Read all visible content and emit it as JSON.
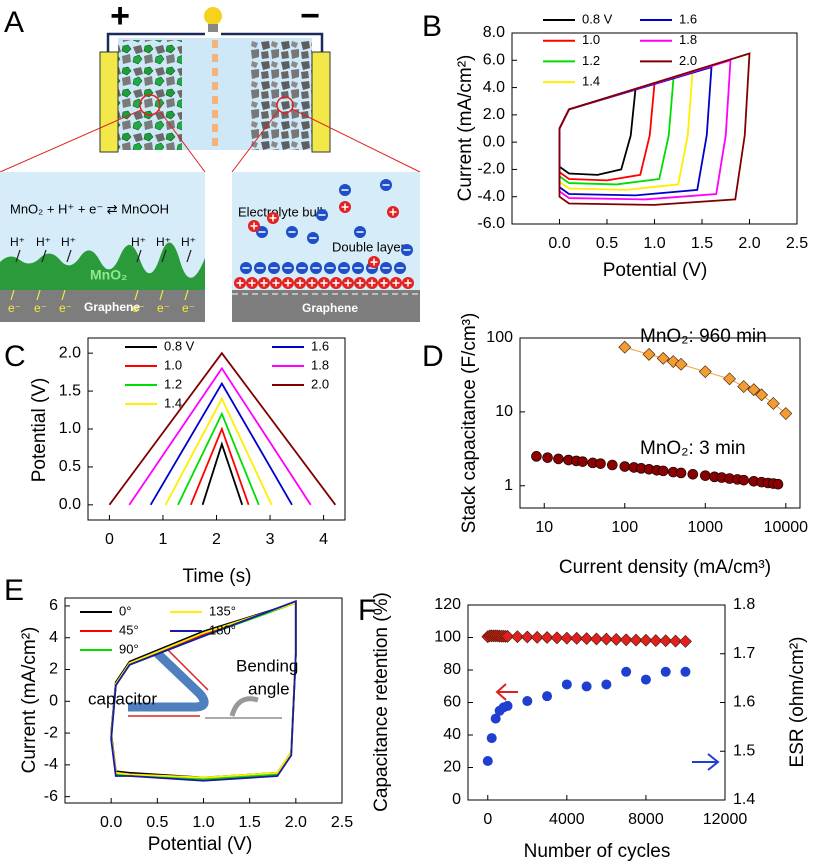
{
  "diagram": {
    "label": "A",
    "plus": "+",
    "minus": "−",
    "reaction": "MnO₂ + H⁺ + e⁻ ⇄ MnOOH",
    "protons": [
      "H⁺",
      "H⁺",
      "H⁺",
      "H⁺",
      "H⁺",
      "H⁺"
    ],
    "mno2": "MnO₂",
    "electrons": [
      "e⁻",
      "e⁻",
      "e⁻",
      "e⁻",
      "e⁻",
      "e⁻"
    ],
    "graphene_left": "Graphene",
    "electrolyte": "Electrolyte bulk",
    "double_layer": "Double layer",
    "graphene_right": "Graphene"
  },
  "chart_data": [
    {
      "type": "line",
      "panel_label": "B",
      "xlabel": "Potential (V)",
      "ylabel": "Current (mA/cm²)",
      "legend": "upper left",
      "xlim": [
        -0.5,
        2.5
      ],
      "ylim": [
        -6,
        8
      ],
      "xticks": [
        {
          "value": 0,
          "label": "0.0"
        },
        0.5,
        {
          "value": 1,
          "label": "1.0"
        },
        1.5,
        {
          "value": 2,
          "label": "2.0"
        },
        2.5
      ],
      "yticks": [
        {
          "value": 8,
          "label": "8.0"
        },
        {
          "value": 6,
          "label": "6.0"
        },
        {
          "value": 4,
          "label": "4.0"
        },
        {
          "value": 2,
          "label": "2.0"
        },
        {
          "value": 0,
          "label": "0.0"
        },
        {
          "value": -2,
          "label": "-2.0"
        },
        {
          "value": -4,
          "label": "-4.0"
        },
        {
          "value": -6,
          "label": "-6.0"
        }
      ],
      "series": [
        {
          "name": "0.8 V",
          "color": "#000000",
          "x": [
            0,
            0.1,
            0.8,
            0.75,
            0.65,
            0.4,
            0.1,
            0,
            0
          ],
          "values": [
            1,
            2.4,
            3.9,
            0.5,
            -2.0,
            -2.4,
            -2.3,
            -1.8,
            1
          ]
        },
        {
          "name": "1.0",
          "color": "#ff0000",
          "x": [
            0,
            0.1,
            1.0,
            0.95,
            0.85,
            0.5,
            0.1,
            0,
            0
          ],
          "values": [
            1,
            2.4,
            4.3,
            0.5,
            -2.4,
            -2.8,
            -2.7,
            -2.2,
            1
          ]
        },
        {
          "name": "1.2",
          "color": "#00dd00",
          "x": [
            0,
            0.1,
            1.2,
            1.15,
            1.05,
            0.6,
            0.1,
            0,
            0
          ],
          "values": [
            1,
            2.4,
            4.7,
            0.5,
            -2.7,
            -3.1,
            -3.0,
            -2.5,
            1
          ]
        },
        {
          "name": "1.4",
          "color": "#ffee00",
          "x": [
            0,
            0.1,
            1.4,
            1.35,
            1.25,
            0.7,
            0.1,
            0,
            0
          ],
          "values": [
            1,
            2.4,
            5.1,
            0.5,
            -3.1,
            -3.5,
            -3.4,
            -2.9,
            1
          ]
        },
        {
          "name": "1.6",
          "color": "#0000cc",
          "x": [
            0,
            0.1,
            1.6,
            1.55,
            1.45,
            0.8,
            0.1,
            0,
            0
          ],
          "values": [
            1,
            2.4,
            5.5,
            0.5,
            -3.5,
            -3.9,
            -3.8,
            -3.3,
            1
          ]
        },
        {
          "name": "1.8",
          "color": "#ff00ff",
          "x": [
            0,
            0.1,
            1.8,
            1.75,
            1.65,
            0.9,
            0.1,
            0,
            0
          ],
          "values": [
            1,
            2.4,
            6.0,
            0.5,
            -3.8,
            -4.2,
            -4.1,
            -3.6,
            1
          ]
        },
        {
          "name": "2.0",
          "color": "#800000",
          "x": [
            0,
            0.1,
            2.0,
            1.95,
            1.85,
            1.0,
            0.1,
            0,
            0
          ],
          "values": [
            1,
            2.4,
            6.5,
            0.5,
            -4.2,
            -4.6,
            -4.5,
            -4.0,
            1
          ]
        }
      ]
    },
    {
      "type": "line",
      "panel_label": "C",
      "xlabel": "Time (s)",
      "ylabel": "Potential (V)",
      "legend": "upper left",
      "xlim": [
        -0.4,
        4.4
      ],
      "ylim": [
        -0.2,
        2.2
      ],
      "xticks": [
        0,
        1,
        2,
        3,
        4
      ],
      "yticks": [
        {
          "value": 0,
          "label": "0.0"
        },
        0.5,
        {
          "value": 1,
          "label": "1.0"
        },
        1.5,
        {
          "value": 2,
          "label": "2.0"
        }
      ],
      "series": [
        {
          "name": "0.8 V",
          "color": "#000000",
          "x": [
            1.74,
            2.1,
            2.48
          ],
          "values": [
            0,
            0.8,
            0
          ]
        },
        {
          "name": "1.0",
          "color": "#ff0000",
          "x": [
            1.52,
            2.1,
            2.6
          ],
          "values": [
            0,
            1.0,
            0
          ]
        },
        {
          "name": "1.2",
          "color": "#00dd00",
          "x": [
            1.28,
            2.1,
            2.79
          ],
          "values": [
            0,
            1.2,
            0
          ]
        },
        {
          "name": "1.4",
          "color": "#ffee00",
          "x": [
            1.05,
            2.1,
            3.03
          ],
          "values": [
            0,
            1.4,
            0
          ]
        },
        {
          "name": "1.6",
          "color": "#0000cc",
          "x": [
            0.77,
            2.1,
            3.41
          ],
          "values": [
            0,
            1.6,
            0
          ]
        },
        {
          "name": "1.8",
          "color": "#ff00ff",
          "x": [
            0.37,
            2.1,
            3.76
          ],
          "values": [
            0,
            1.8,
            0
          ]
        },
        {
          "name": "2.0",
          "color": "#800000",
          "x": [
            0,
            2.1,
            4.22
          ],
          "values": [
            0,
            2.0,
            0
          ]
        }
      ]
    },
    {
      "type": "scatter",
      "panel_label": "D",
      "xlabel": "Current density (mA/cm³)",
      "ylabel": "Stack capacitance (F/cm³)",
      "xscale": "log",
      "yscale": "log",
      "xlim": [
        5,
        15000
      ],
      "ylim": [
        0.5,
        100
      ],
      "xticks": [
        10,
        100,
        1000,
        10000
      ],
      "yticks": [
        1,
        10,
        100
      ],
      "annotations": [
        "MnO₂: 960 min",
        "MnO₂: 3 min"
      ],
      "series": [
        {
          "color": "#f39c34",
          "marker": "diamond",
          "line": true,
          "x": [
            100,
            200,
            300,
            400,
            500,
            1000,
            2000,
            3000,
            4000,
            5000,
            7000,
            10000
          ],
          "values": [
            75,
            60,
            53,
            48,
            44,
            35,
            28,
            22,
            20,
            17,
            13,
            9.5
          ]
        },
        {
          "color": "#8b0000",
          "marker": "circle",
          "x": [
            8,
            11,
            15,
            20,
            25,
            30,
            40,
            50,
            70,
            100,
            130,
            160,
            200,
            250,
            300,
            400,
            500,
            700,
            1000,
            1300,
            1600,
            2000,
            2500,
            3000,
            4000,
            5000,
            6000,
            7000,
            8000
          ],
          "values": [
            2.5,
            2.4,
            2.31,
            2.23,
            2.17,
            2.12,
            2.04,
            1.99,
            1.91,
            1.82,
            1.77,
            1.72,
            1.67,
            1.62,
            1.59,
            1.53,
            1.49,
            1.43,
            1.37,
            1.32,
            1.29,
            1.25,
            1.22,
            1.19,
            1.15,
            1.12,
            1.09,
            1.07,
            1.05
          ]
        }
      ]
    },
    {
      "type": "line",
      "panel_label": "E",
      "xlabel": "Potential (V)",
      "ylabel": "Current (mA/cm²)",
      "legend": "upper left",
      "xlim": [
        -0.5,
        2.5
      ],
      "ylim": [
        -6.4,
        6.5
      ],
      "xticks": [
        {
          "value": 0,
          "label": "0.0"
        },
        0.5,
        {
          "value": 1,
          "label": "1.0"
        },
        1.5,
        {
          "value": 2,
          "label": "2.0"
        },
        2.5
      ],
      "yticks": [
        6,
        4,
        2,
        0,
        -2,
        -4,
        -6
      ],
      "annotations": [
        "capacitor",
        "Bending",
        "angle"
      ],
      "series": [
        {
          "name": "0°",
          "color": "#000000",
          "x": [
            0,
            0.05,
            0.2,
            1.0,
            2.0,
            2.0,
            1.95,
            1.8,
            1.0,
            0.2,
            0.05,
            0
          ],
          "values": [
            -2.0,
            1.2,
            2.5,
            4.4,
            6.2,
            3.0,
            -3.2,
            -4.5,
            -4.8,
            -4.5,
            -4.4,
            -2.0
          ]
        },
        {
          "name": "45°",
          "color": "#ff0000",
          "x": [
            0,
            0.05,
            0.2,
            1.0,
            2.0,
            2.0,
            1.95,
            1.8,
            1.0,
            0.2,
            0.05,
            0
          ],
          "values": [
            -2.2,
            1.0,
            2.4,
            4.2,
            6.2,
            3.0,
            -3.2,
            -4.6,
            -4.9,
            -4.6,
            -4.5,
            -2.2
          ]
        },
        {
          "name": "90°",
          "color": "#00dd00",
          "x": [
            0,
            0.05,
            0.2,
            1.0,
            2.0,
            2.0,
            1.95,
            1.8,
            1.0,
            0.2,
            0.05,
            0
          ],
          "values": [
            -2.3,
            1.0,
            2.3,
            4.1,
            6.2,
            3.0,
            -3.3,
            -4.6,
            -4.9,
            -4.7,
            -4.6,
            -2.3
          ]
        },
        {
          "name": "135°",
          "color": "#ffee00",
          "x": [
            0,
            0.05,
            0.2,
            1.0,
            2.0,
            2.0,
            1.95,
            1.8,
            1.0,
            0.2,
            0.05,
            0
          ],
          "values": [
            -2.2,
            1.1,
            2.4,
            4.3,
            6.2,
            3.0,
            -3.2,
            -4.5,
            -4.8,
            -4.6,
            -4.5,
            -2.2
          ]
        },
        {
          "name": "180°",
          "color": "#1a1aa8",
          "x": [
            0,
            0.05,
            0.2,
            1.0,
            2.0,
            2.0,
            1.95,
            1.8,
            1.0,
            0.2,
            0.05,
            0
          ],
          "values": [
            -2.4,
            1.0,
            2.3,
            4.1,
            6.3,
            3.0,
            -3.4,
            -4.7,
            -5.0,
            -4.7,
            -4.7,
            -2.4
          ]
        }
      ]
    },
    {
      "type": "scatter",
      "panel_label": "F",
      "xlabel": "Number of cycles",
      "ylabel": "Capacitance retention (%)",
      "y2label": "ESR (ohm/cm²)",
      "xlim": [
        -1000,
        12000
      ],
      "ylim": [
        0,
        120
      ],
      "y2lim": [
        1.4,
        1.8
      ],
      "xticks": [
        0,
        4000,
        8000,
        12000
      ],
      "yticks": [
        0,
        20,
        40,
        60,
        80,
        100,
        120
      ],
      "y2ticks": [
        {
          "value": 1.4,
          "label": "1.4"
        },
        {
          "value": 1.5,
          "label": "1.5"
        },
        {
          "value": 1.6,
          "label": "1.6"
        },
        {
          "value": 1.7,
          "label": "1.7"
        },
        {
          "value": 1.8,
          "label": "1.8"
        }
      ],
      "series": [
        {
          "color": "#e02020",
          "marker": "diamond",
          "axis": "y",
          "x": [
            0,
            100,
            200,
            300,
            400,
            500,
            600,
            700,
            800,
            900,
            1000,
            1500,
            2000,
            2500,
            3000,
            3500,
            4000,
            4500,
            5000,
            5500,
            6000,
            6500,
            7000,
            7500,
            8000,
            8500,
            9000,
            9500,
            10000
          ],
          "values": [
            100.5,
            101,
            101,
            101,
            101,
            101,
            100.8,
            100.8,
            100.8,
            100.7,
            100.7,
            100.5,
            100.3,
            100.1,
            100,
            99.8,
            99.6,
            99.5,
            99.3,
            99.1,
            99,
            98.8,
            98.6,
            98.4,
            98.3,
            98.1,
            98,
            97.8,
            97.6
          ]
        },
        {
          "color": "#1f3fd0",
          "marker": "circle",
          "axis": "y2",
          "x": [
            0,
            200,
            400,
            600,
            800,
            1000,
            2000,
            3000,
            4000,
            5000,
            6000,
            7000,
            8000,
            9000,
            10000
          ],
          "values": [
            1.48,
            1.527,
            1.567,
            1.583,
            1.59,
            1.593,
            1.603,
            1.613,
            1.637,
            1.633,
            1.637,
            1.663,
            1.647,
            1.663,
            1.663
          ]
        }
      ]
    }
  ]
}
